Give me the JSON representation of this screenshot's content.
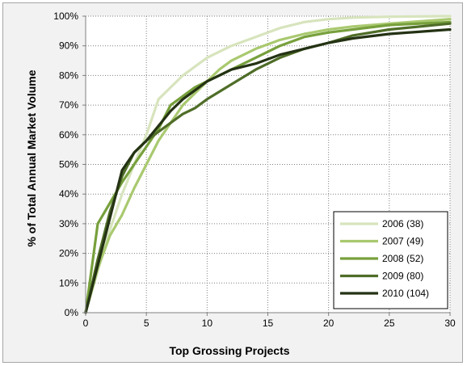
{
  "chart_data": {
    "type": "line",
    "title": "",
    "xlabel": "Top Grossing Projects",
    "ylabel": "% of Total Annual Market Volume",
    "xlim": [
      0,
      30
    ],
    "ylim": [
      0,
      100
    ],
    "x_ticks": [
      "0",
      "5",
      "10",
      "15",
      "20",
      "25",
      "30"
    ],
    "y_ticks": [
      "0%",
      "10%",
      "20%",
      "30%",
      "40%",
      "50%",
      "60%",
      "70%",
      "80%",
      "90%",
      "100%"
    ],
    "grid": true,
    "legend_position": "bottom-right",
    "series": [
      {
        "name": "2006 (38)",
        "color": "#d7e4bd",
        "points": [
          [
            0,
            0
          ],
          [
            1,
            14
          ],
          [
            2,
            28
          ],
          [
            3,
            40
          ],
          [
            4,
            50
          ],
          [
            5,
            60
          ],
          [
            6,
            72
          ],
          [
            7,
            76
          ],
          [
            8,
            80
          ],
          [
            9,
            83
          ],
          [
            10,
            86
          ],
          [
            12,
            90
          ],
          [
            14,
            93
          ],
          [
            16,
            96
          ],
          [
            18,
            98
          ],
          [
            20,
            99
          ],
          [
            22,
            99.5
          ],
          [
            25,
            99.8
          ],
          [
            30,
            100
          ]
        ]
      },
      {
        "name": "2007 (49)",
        "color": "#a9c96f",
        "points": [
          [
            0,
            0
          ],
          [
            1,
            15
          ],
          [
            2,
            26
          ],
          [
            3,
            33
          ],
          [
            4,
            42
          ],
          [
            5,
            50
          ],
          [
            6,
            58
          ],
          [
            7,
            64
          ],
          [
            8,
            70
          ],
          [
            9,
            74
          ],
          [
            10,
            78
          ],
          [
            11,
            82
          ],
          [
            12,
            85
          ],
          [
            14,
            89
          ],
          [
            16,
            92
          ],
          [
            18,
            94
          ],
          [
            20,
            95.5
          ],
          [
            22,
            96.5
          ],
          [
            25,
            97.5
          ],
          [
            30,
            99
          ]
        ]
      },
      {
        "name": "2008 (52)",
        "color": "#77a03c",
        "points": [
          [
            0,
            0
          ],
          [
            1,
            30
          ],
          [
            2,
            37
          ],
          [
            3,
            44
          ],
          [
            4,
            50
          ],
          [
            5,
            56
          ],
          [
            6,
            62
          ],
          [
            7,
            70
          ],
          [
            8,
            73
          ],
          [
            9,
            76
          ],
          [
            10,
            78
          ],
          [
            12,
            82
          ],
          [
            14,
            86
          ],
          [
            16,
            90
          ],
          [
            18,
            93
          ],
          [
            20,
            94.5
          ],
          [
            22,
            95.5
          ],
          [
            25,
            97
          ],
          [
            30,
            98
          ]
        ]
      },
      {
        "name": "2009 (80)",
        "color": "#4f6d28",
        "points": [
          [
            0,
            0
          ],
          [
            1,
            18
          ],
          [
            2,
            34
          ],
          [
            3,
            46
          ],
          [
            4,
            54
          ],
          [
            5,
            58
          ],
          [
            6,
            61
          ],
          [
            7,
            64
          ],
          [
            8,
            67
          ],
          [
            9,
            69
          ],
          [
            10,
            72
          ],
          [
            12,
            77
          ],
          [
            14,
            82
          ],
          [
            16,
            86
          ],
          [
            18,
            89
          ],
          [
            20,
            91
          ],
          [
            22,
            93.5
          ],
          [
            25,
            95.5
          ],
          [
            30,
            97.5
          ]
        ]
      },
      {
        "name": "2010 (104)",
        "color": "#243214",
        "points": [
          [
            0,
            0
          ],
          [
            1,
            16
          ],
          [
            2,
            32
          ],
          [
            3,
            48
          ],
          [
            4,
            54
          ],
          [
            5,
            58
          ],
          [
            6,
            63
          ],
          [
            7,
            68
          ],
          [
            8,
            72
          ],
          [
            9,
            75
          ],
          [
            10,
            78
          ],
          [
            11,
            80
          ],
          [
            12,
            82
          ],
          [
            14,
            84
          ],
          [
            16,
            87
          ],
          [
            18,
            89
          ],
          [
            20,
            91
          ],
          [
            22,
            92.5
          ],
          [
            25,
            94
          ],
          [
            30,
            95.5
          ]
        ]
      }
    ]
  }
}
